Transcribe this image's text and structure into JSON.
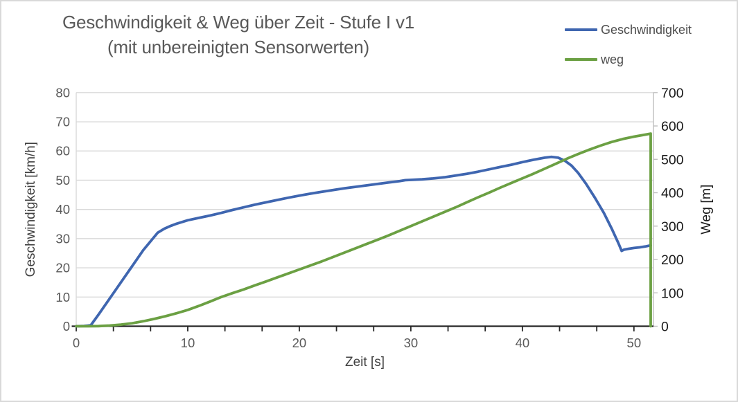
{
  "title": {
    "line1": "Geschwindigkeit & Weg über Zeit - Stufe I v1",
    "line2": "(mit unbereinigten Sensorwerten)"
  },
  "colors": {
    "title_text": "#595959",
    "gridline": "#D9D9D9",
    "x_axis_line": "#262626",
    "right_axis_line": "#BFBFBF",
    "left_tick_labels": "#595959",
    "x_tick_labels": "#595959",
    "right_tick_labels": "#1A1A1A",
    "axis_title_left": "#404040",
    "axis_title_x": "#404040",
    "axis_title_right": "#1A1A1A",
    "frame_border": "#D9D9D9"
  },
  "chart_data": {
    "type": "line",
    "title": "Geschwindigkeit & Weg über Zeit - Stufe I v1 (mit unbereinigten Sensorwerten)",
    "grid": "horizontal",
    "legend_position": "top-right",
    "x_axis": {
      "label": "Zeit [s]",
      "min": 0,
      "max": 51.75,
      "major_unit": 10,
      "minor_unit": 3.3333,
      "tick_labels": [
        "0",
        "10",
        "20",
        "30",
        "40",
        "50"
      ],
      "tick_values": [
        0,
        10,
        20,
        30,
        40,
        50
      ]
    },
    "y_axis_left": {
      "label": "Geschwindigkeit [km/h]",
      "min": 0,
      "max": 80,
      "major_unit": 10,
      "tick_labels": [
        "0",
        "10",
        "20",
        "30",
        "40",
        "50",
        "60",
        "70",
        "80"
      ],
      "tick_values": [
        0,
        10,
        20,
        30,
        40,
        50,
        60,
        70,
        80
      ]
    },
    "y_axis_right": {
      "label": "Weg [m]",
      "min": 0,
      "max": 700,
      "major_unit": 100,
      "tick_labels": [
        "0",
        "100",
        "200",
        "300",
        "400",
        "500",
        "600",
        "700"
      ],
      "tick_values": [
        0,
        100,
        200,
        300,
        400,
        500,
        600,
        700
      ]
    },
    "series": [
      {
        "name": "Geschwindigkeit",
        "axis": "left",
        "unit": "km/h",
        "color": "#3F66B0",
        "points": [
          [
            0,
            0
          ],
          [
            0.7,
            0.1
          ],
          [
            1.3,
            0.3
          ],
          [
            2,
            4
          ],
          [
            3,
            9.5
          ],
          [
            4,
            15
          ],
          [
            5,
            20.5
          ],
          [
            6,
            26
          ],
          [
            6.8,
            29.7
          ],
          [
            7.3,
            32
          ],
          [
            7.9,
            33.4
          ],
          [
            8.5,
            34.4
          ],
          [
            9,
            35.1
          ],
          [
            10,
            36.3
          ],
          [
            11,
            37.1
          ],
          [
            12,
            37.9
          ],
          [
            13,
            38.8
          ],
          [
            14,
            39.8
          ],
          [
            15,
            40.7
          ],
          [
            16,
            41.6
          ],
          [
            17,
            42.4
          ],
          [
            18,
            43.2
          ],
          [
            19,
            44
          ],
          [
            20,
            44.7
          ],
          [
            21,
            45.4
          ],
          [
            22,
            46
          ],
          [
            23,
            46.6
          ],
          [
            24,
            47.2
          ],
          [
            25,
            47.7
          ],
          [
            26,
            48.2
          ],
          [
            27,
            48.7
          ],
          [
            28,
            49.2
          ],
          [
            29,
            49.7
          ],
          [
            29.5,
            50
          ],
          [
            30,
            50.1
          ],
          [
            31,
            50.3
          ],
          [
            32,
            50.6
          ],
          [
            33,
            51
          ],
          [
            34,
            51.6
          ],
          [
            35,
            52.2
          ],
          [
            36,
            52.9
          ],
          [
            37,
            53.7
          ],
          [
            38,
            54.5
          ],
          [
            39,
            55.3
          ],
          [
            40,
            56.2
          ],
          [
            41,
            57
          ],
          [
            42,
            57.7
          ],
          [
            42.6,
            58
          ],
          [
            43.2,
            57.7
          ],
          [
            43.8,
            56.7
          ],
          [
            44.4,
            55
          ],
          [
            45,
            52.5
          ],
          [
            45.7,
            48.8
          ],
          [
            46.5,
            44
          ],
          [
            47.3,
            38.8
          ],
          [
            48,
            33.5
          ],
          [
            48.6,
            28.5
          ],
          [
            48.9,
            25.8
          ],
          [
            49.1,
            26.2
          ],
          [
            49.5,
            26.5
          ],
          [
            50,
            26.8
          ],
          [
            50.5,
            27
          ],
          [
            51,
            27.3
          ],
          [
            51.5,
            27.7
          ]
        ]
      },
      {
        "name": "weg",
        "axis": "right",
        "unit": "m",
        "color": "#6BA043",
        "points": [
          [
            0,
            0
          ],
          [
            1,
            0
          ],
          [
            2,
            0.5
          ],
          [
            3,
            2
          ],
          [
            4,
            5
          ],
          [
            5,
            9
          ],
          [
            6,
            15
          ],
          [
            7,
            22
          ],
          [
            8,
            30
          ],
          [
            9,
            39
          ],
          [
            10,
            49
          ],
          [
            11,
            61
          ],
          [
            12,
            74
          ],
          [
            13,
            87.5
          ],
          [
            14,
            99
          ],
          [
            15,
            110
          ],
          [
            16,
            122
          ],
          [
            17,
            134
          ],
          [
            18,
            146
          ],
          [
            19,
            158
          ],
          [
            20,
            170
          ],
          [
            21,
            182
          ],
          [
            22,
            194
          ],
          [
            23,
            207
          ],
          [
            24,
            220
          ],
          [
            25,
            233
          ],
          [
            26,
            246
          ],
          [
            27,
            259
          ],
          [
            28,
            272
          ],
          [
            29,
            286
          ],
          [
            30,
            300
          ],
          [
            31,
            314
          ],
          [
            32,
            328
          ],
          [
            33,
            342
          ],
          [
            34,
            356
          ],
          [
            35,
            371
          ],
          [
            36,
            386
          ],
          [
            37,
            400
          ],
          [
            38,
            415
          ],
          [
            39,
            429
          ],
          [
            40,
            443
          ],
          [
            41,
            457
          ],
          [
            42,
            472
          ],
          [
            43,
            487
          ],
          [
            44,
            502
          ],
          [
            45,
            516
          ],
          [
            46,
            529
          ],
          [
            47,
            541
          ],
          [
            48,
            552
          ],
          [
            49,
            561
          ],
          [
            50,
            568
          ],
          [
            51,
            574
          ],
          [
            51.5,
            577
          ],
          [
            51.5,
            0
          ]
        ]
      }
    ]
  }
}
